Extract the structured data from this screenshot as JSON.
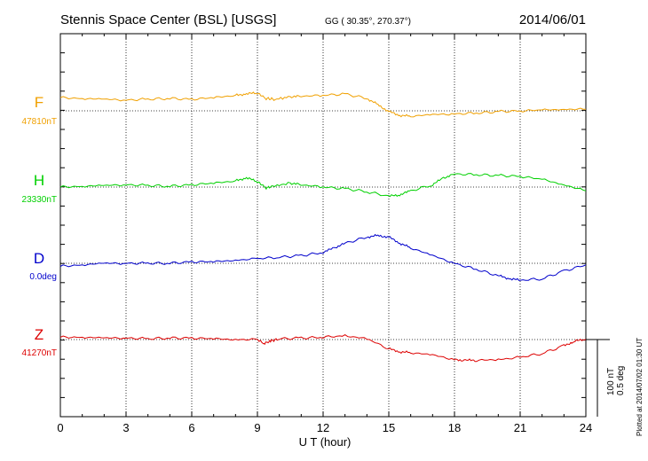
{
  "header": {
    "station": "Stennis Space Center (BSL)  [USGS]",
    "coords": "GG ( 30.35°, 270.37°)",
    "date": "2014/06/01"
  },
  "footer": {
    "plotted": "Plotted at 2014/07/02 01:30 UT"
  },
  "scale": {
    "nt": "100 nT",
    "deg": "0.5 deg"
  },
  "chart_data": {
    "type": "line",
    "xlabel": "U T (hour)",
    "xlim": [
      0,
      24
    ],
    "xticks": [
      0,
      3,
      6,
      9,
      12,
      15,
      18,
      21,
      24
    ],
    "xtick_labels": [
      "0",
      "3",
      "6",
      "9",
      "12",
      "15",
      "18",
      "21",
      "24"
    ],
    "grid": true,
    "colors": {
      "F": "#f0a000",
      "H": "#00d000",
      "D": "#0000cc",
      "Z": "#dd0000"
    },
    "series": [
      {
        "name": "F",
        "baseline_label": "47810nT",
        "unit": "nT",
        "baseline": 47810,
        "x": [
          0,
          1,
          2,
          3,
          4,
          5,
          6,
          7,
          8,
          8.5,
          9,
          9.4,
          9.8,
          10.5,
          11,
          12,
          13,
          14,
          14.5,
          15,
          15.5,
          16,
          17,
          18,
          19,
          20,
          21,
          22,
          23,
          24
        ],
        "y": [
          47827,
          47826,
          47825,
          47824,
          47825,
          47826,
          47825,
          47827,
          47830,
          47832,
          47833,
          47826,
          47825,
          47828,
          47829,
          47830,
          47832,
          47826,
          47818,
          47809,
          47804,
          47803,
          47805,
          47806,
          47807,
          47809,
          47810,
          47811,
          47812,
          47812
        ]
      },
      {
        "name": "H",
        "baseline_label": "23330nT",
        "unit": "nT",
        "baseline": 23330,
        "x": [
          0,
          1,
          2,
          3,
          4,
          5,
          6,
          7,
          8,
          8.5,
          9,
          9.4,
          9.7,
          10.5,
          11,
          12,
          13,
          14,
          15,
          15.5,
          16,
          17,
          17.5,
          18,
          19,
          20,
          21,
          22,
          23,
          24
        ],
        "y": [
          23330,
          23331,
          23332,
          23333,
          23332,
          23331,
          23333,
          23335,
          23338,
          23342,
          23337,
          23329,
          23331,
          23335,
          23333,
          23330,
          23328,
          23324,
          23318,
          23320,
          23325,
          23333,
          23342,
          23347,
          23346,
          23345,
          23344,
          23340,
          23333,
          23325
        ]
      },
      {
        "name": "D",
        "baseline_label": "0.0deg",
        "unit": "deg",
        "baseline": 0.0,
        "x": [
          0,
          1,
          2,
          3,
          4,
          5,
          6,
          7,
          8,
          9,
          10,
          11,
          12,
          12.5,
          13,
          14,
          14.5,
          15,
          15.5,
          16,
          17,
          18,
          19,
          20,
          20.5,
          21,
          22,
          23,
          24
        ],
        "y": [
          -0.02,
          -0.01,
          0.0,
          0.0,
          0.0,
          0.0,
          0.01,
          0.01,
          0.02,
          0.03,
          0.04,
          0.05,
          0.07,
          0.1,
          0.13,
          0.17,
          0.18,
          0.17,
          0.13,
          0.1,
          0.05,
          0.0,
          -0.04,
          -0.08,
          -0.1,
          -0.11,
          -0.1,
          -0.05,
          -0.01
        ]
      },
      {
        "name": "Z",
        "baseline_label": "41270nT",
        "unit": "nT",
        "baseline": 41270,
        "x": [
          0,
          1,
          2,
          3,
          4,
          5,
          6,
          7,
          8,
          9,
          9.3,
          9.6,
          10,
          11,
          12,
          13,
          14,
          15,
          15.5,
          16,
          17,
          18,
          18.5,
          19,
          20,
          21,
          22,
          23,
          23.5,
          24
        ],
        "y": [
          41273,
          41273,
          41272,
          41272,
          41271,
          41272,
          41272,
          41271,
          41270,
          41270,
          41265,
          41268,
          41271,
          41272,
          41273,
          41275,
          41271,
          41258,
          41254,
          41253,
          41250,
          41244,
          41243,
          41243,
          41244,
          41247,
          41252,
          41262,
          41268,
          41270
        ]
      }
    ]
  }
}
